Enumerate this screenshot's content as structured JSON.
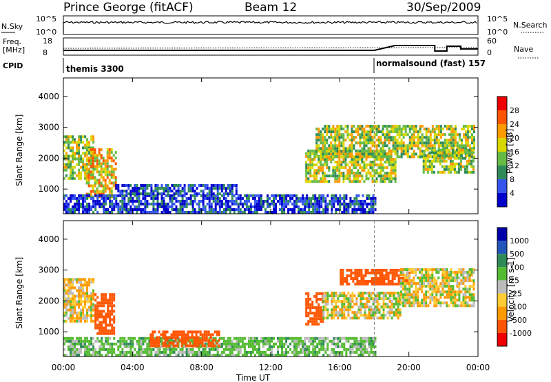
{
  "header": {
    "station": "Prince George (fitACF)",
    "beam": "Beam 12",
    "date": "30/Sep/2009"
  },
  "noise_panel": {
    "left_label": "N.Sky",
    "right_label": "N.Search",
    "ticks_left": [
      "10^5",
      "10^0"
    ],
    "ticks_right": [
      "10^5",
      "10^0"
    ]
  },
  "freq_panel": {
    "left_label_1": "Freq.",
    "left_label_2": "[MHz]",
    "left_ticks": [
      "18",
      "8"
    ],
    "right_label": "Nave",
    "right_ticks": [
      "60",
      "0"
    ]
  },
  "cpid": {
    "label": "CPID",
    "segments": [
      {
        "name": "themis 3300",
        "start_h": 0
      },
      {
        "name": "normalsound (fast) 157",
        "start_h": 18
      }
    ]
  },
  "colors": {
    "power_scale": [
      "#0000cc",
      "#3355ee",
      "#2e8b57",
      "#66bb44",
      "#d8d800",
      "#ff9900",
      "#ff5500",
      "#ee0000"
    ],
    "velocity_scale": [
      "#ee0000",
      "#ff5500",
      "#ff9900",
      "#ffcc33",
      "#bbbbbb",
      "#55bb33",
      "#2e8b57",
      "#2255bb",
      "#0000aa"
    ]
  },
  "chart_data": [
    {
      "type": "heatmap",
      "title": "",
      "xlabel": "",
      "ylabel": "Slant Range [km]",
      "xlim": [
        0,
        24
      ],
      "ylim": [
        200,
        4600
      ],
      "x_tick_labels": [
        "00:00",
        "04:00",
        "08:00",
        "12:00",
        "16:00",
        "20:00",
        "00:00"
      ],
      "y_tick_labels": [
        "1000",
        "2000",
        "3000",
        "4000"
      ],
      "colorbar": {
        "label": "Power [dB]",
        "ticks": [
          "4",
          "8",
          "12",
          "16",
          "20",
          "24",
          "28"
        ],
        "range": [
          0,
          32
        ]
      },
      "regions": [
        {
          "t": [
            0.0,
            1.8
          ],
          "r": [
            1300,
            2700
          ],
          "level": 16
        },
        {
          "t": [
            1.3,
            3.0
          ],
          "r": [
            700,
            2300
          ],
          "level": 20
        },
        {
          "t": [
            0.0,
            18.0
          ],
          "r": [
            200,
            800
          ],
          "level": 5
        },
        {
          "t": [
            3.0,
            10.0
          ],
          "r": [
            800,
            1100
          ],
          "level": 5
        },
        {
          "t": [
            14.0,
            19.2
          ],
          "r": [
            1200,
            2200
          ],
          "level": 17
        },
        {
          "t": [
            14.6,
            23.8
          ],
          "r": [
            2000,
            3000
          ],
          "level": 16
        },
        {
          "t": [
            20.8,
            23.8
          ],
          "r": [
            1500,
            2300
          ],
          "level": 15
        }
      ]
    },
    {
      "type": "heatmap",
      "title": "",
      "xlabel": "Time UT",
      "ylabel": "Slant Range [km]",
      "xlim": [
        0,
        24
      ],
      "ylim": [
        200,
        4600
      ],
      "x_tick_labels": [
        "00:00",
        "04:00",
        "08:00",
        "12:00",
        "16:00",
        "20:00",
        "00:00"
      ],
      "y_tick_labels": [
        "1000",
        "2000",
        "3000",
        "4000"
      ],
      "colorbar": {
        "label": "Velocity [m s-1]",
        "ticks": [
          "1000",
          "500",
          "100",
          "25",
          "-25",
          "-100",
          "-500",
          "-1000"
        ]
      },
      "regions": [
        {
          "t": [
            0.0,
            1.8
          ],
          "r": [
            1300,
            2700
          ],
          "velocity": -25
        },
        {
          "t": [
            1.8,
            3.0
          ],
          "r": [
            900,
            2200
          ],
          "velocity": -300
        },
        {
          "t": [
            0.0,
            18.0
          ],
          "r": [
            200,
            800
          ],
          "velocity": 60
        },
        {
          "t": [
            5.0,
            9.0
          ],
          "r": [
            500,
            1000
          ],
          "velocity": -300
        },
        {
          "t": [
            14.0,
            15.0
          ],
          "r": [
            1200,
            2200
          ],
          "velocity": -200
        },
        {
          "t": [
            15.0,
            19.5
          ],
          "r": [
            1400,
            2300
          ],
          "velocity": 0
        },
        {
          "t": [
            16.0,
            20.0
          ],
          "r": [
            2500,
            3000
          ],
          "velocity": -300
        },
        {
          "t": [
            19.5,
            23.8
          ],
          "r": [
            1800,
            3000
          ],
          "velocity": 0
        }
      ]
    }
  ]
}
